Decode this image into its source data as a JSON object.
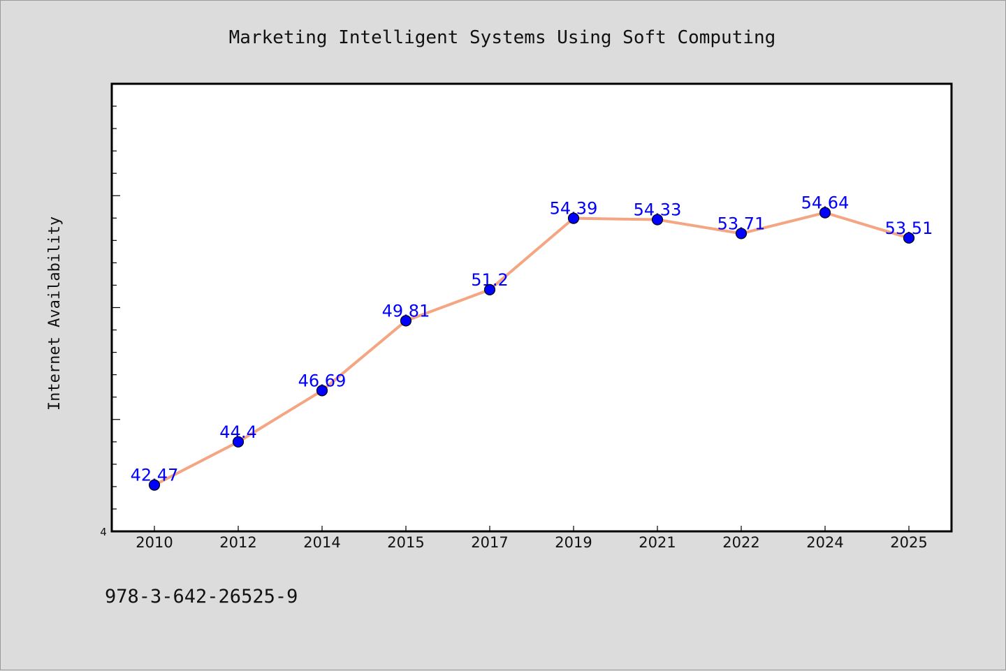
{
  "chart_data": {
    "type": "line",
    "title": "Marketing Intelligent Systems Using Soft Computing",
    "ylabel": "Internet Availability",
    "xlabel": "",
    "categories": [
      "2010",
      "2012",
      "2014",
      "2015",
      "2017",
      "2019",
      "2021",
      "2022",
      "2024",
      "2025"
    ],
    "series": [
      {
        "values": [
          42.47,
          44.4,
          46.69,
          49.81,
          51.2,
          54.39,
          54.33,
          53.71,
          54.64,
          53.51
        ],
        "labels": [
          "42.47",
          "44.4",
          "46.69",
          "49.81",
          "51.2",
          "54.39",
          "54.33",
          "53.71",
          "54.64",
          "53.51"
        ]
      }
    ],
    "ylim": [
      40.4,
      60.4
    ],
    "ymin_label": "4",
    "grid": false,
    "legend": "none",
    "colors": {
      "line": "#f4a582",
      "marker": "#0000ff",
      "label": "#0000ff",
      "plot_bg": "#ffffff",
      "page_bg": "#dcdcdc"
    }
  },
  "footer": {
    "isbn": "978-3-642-26525-9"
  }
}
